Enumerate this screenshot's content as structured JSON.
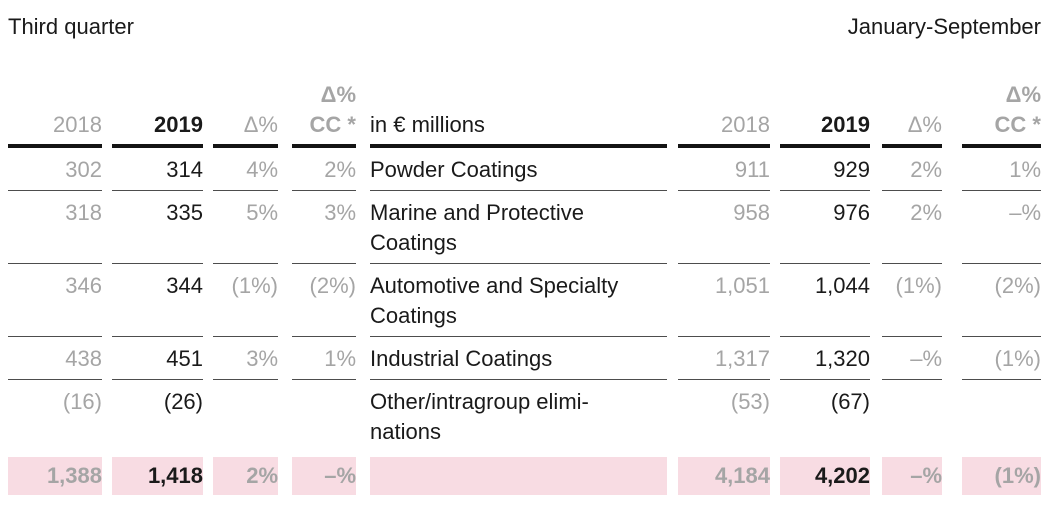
{
  "page": {
    "left_period_label": "Third quarter",
    "right_period_label": "January-September"
  },
  "table": {
    "unit_label": "in € millions",
    "header": {
      "q3": {
        "y2018": "2018",
        "y2019": "2019",
        "delta": "Δ%",
        "delta_cc_line1": "Δ%",
        "delta_cc_line2": "CC *"
      },
      "jan_sep": {
        "y2018": "2018",
        "y2019": "2019",
        "delta": "Δ%",
        "delta_cc_line1": "Δ%",
        "delta_cc_line2": "CC *"
      }
    },
    "rows": [
      {
        "name": "Powder Coatings",
        "q3": {
          "y2018": "302",
          "y2019": "314",
          "delta": "4%",
          "delta_cc": "2%"
        },
        "jan_sep": {
          "y2018": "911",
          "y2019": "929",
          "delta": "2%",
          "delta_cc": "1%"
        }
      },
      {
        "name": "Marine and Protective\nCoatings",
        "q3": {
          "y2018": "318",
          "y2019": "335",
          "delta": "5%",
          "delta_cc": "3%"
        },
        "jan_sep": {
          "y2018": "958",
          "y2019": "976",
          "delta": "2%",
          "delta_cc": "–%"
        }
      },
      {
        "name": "Automotive and Specialty\nCoatings",
        "q3": {
          "y2018": "346",
          "y2019": "344",
          "delta": "(1%)",
          "delta_cc": "(2%)"
        },
        "jan_sep": {
          "y2018": "1,051",
          "y2019": "1,044",
          "delta": "(1%)",
          "delta_cc": "(2%)"
        }
      },
      {
        "name": "Industrial Coatings",
        "q3": {
          "y2018": "438",
          "y2019": "451",
          "delta": "3%",
          "delta_cc": "1%"
        },
        "jan_sep": {
          "y2018": "1,317",
          "y2019": "1,320",
          "delta": "–%",
          "delta_cc": "(1%)"
        }
      },
      {
        "name": "Other/intragroup elimi-\nnations",
        "q3": {
          "y2018": "(16)",
          "y2019": "(26)",
          "delta": "",
          "delta_cc": ""
        },
        "jan_sep": {
          "y2018": "(53)",
          "y2019": "(67)",
          "delta": "",
          "delta_cc": ""
        }
      }
    ],
    "total": {
      "q3": {
        "y2018": "1,388",
        "y2019": "1,418",
        "delta": "2%",
        "delta_cc": "–%"
      },
      "jan_sep": {
        "y2018": "4,184",
        "y2019": "4,202",
        "delta": "–%",
        "delta_cc": "(1%)"
      }
    },
    "colors": {
      "highlight_pink": "#f8dce3",
      "muted_text": "#a5a5a5",
      "primary_text": "#1a1a1a"
    }
  }
}
